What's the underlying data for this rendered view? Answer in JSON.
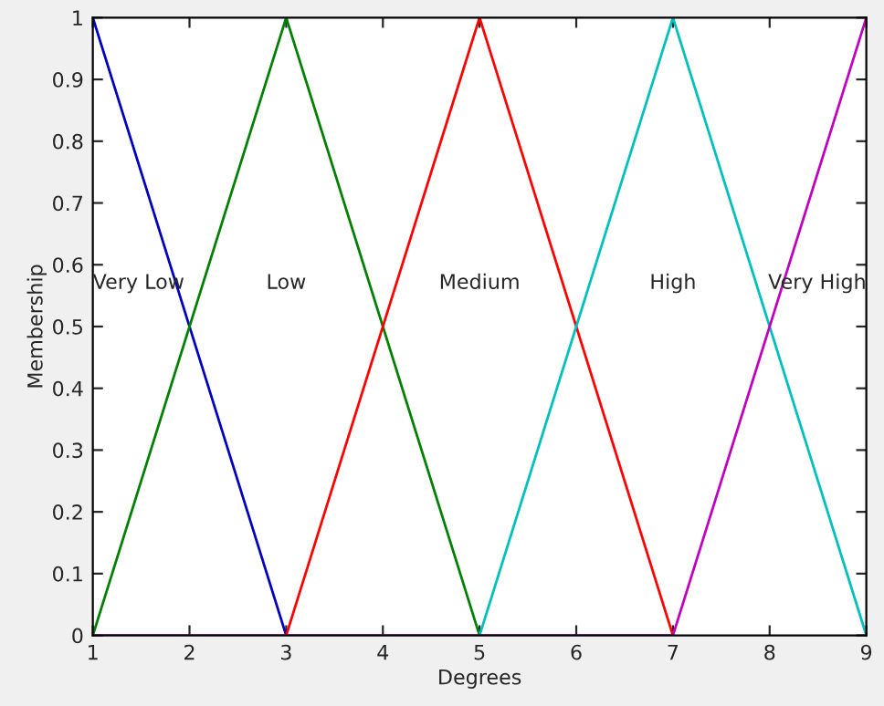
{
  "chart_data": {
    "type": "line",
    "xlabel": "Degrees",
    "ylabel": "Membership",
    "xlim": [
      1,
      9
    ],
    "ylim": [
      0,
      1
    ],
    "xticks": [
      1,
      2,
      3,
      4,
      5,
      6,
      7,
      8,
      9
    ],
    "yticks": [
      0,
      {
        "value": 0.1,
        "label": "0.1"
      },
      {
        "value": 0.2,
        "label": "0.2"
      },
      {
        "value": 0.3,
        "label": "0.3"
      },
      {
        "value": 0.4,
        "label": "0.4"
      },
      {
        "value": 0.5,
        "label": "0.5"
      },
      {
        "value": 0.6,
        "label": "0.6"
      },
      {
        "value": 0.7,
        "label": "0.7"
      },
      {
        "value": 0.8,
        "label": "0.8"
      },
      {
        "value": 0.9,
        "label": "0.9"
      },
      1
    ],
    "grid": false,
    "legend": false,
    "marker": "none",
    "line_style": "solid",
    "series": [
      {
        "name": "Very Low",
        "color": "#0000bf",
        "x": [
          1,
          3
        ],
        "values": [
          1,
          0
        ]
      },
      {
        "name": "Low",
        "color": "#008000",
        "x": [
          1,
          3,
          5
        ],
        "values": [
          0,
          1,
          0
        ]
      },
      {
        "name": "Medium",
        "color": "#ff0000",
        "x": [
          3,
          5,
          7
        ],
        "values": [
          0,
          1,
          0
        ]
      },
      {
        "name": "High",
        "color": "#00bfbf",
        "x": [
          5,
          7,
          9
        ],
        "values": [
          0,
          1,
          0
        ]
      },
      {
        "name": "Very High",
        "color": "#bf00bf",
        "x": [
          1,
          7,
          9
        ],
        "values": [
          0,
          0,
          1
        ]
      }
    ]
  }
}
